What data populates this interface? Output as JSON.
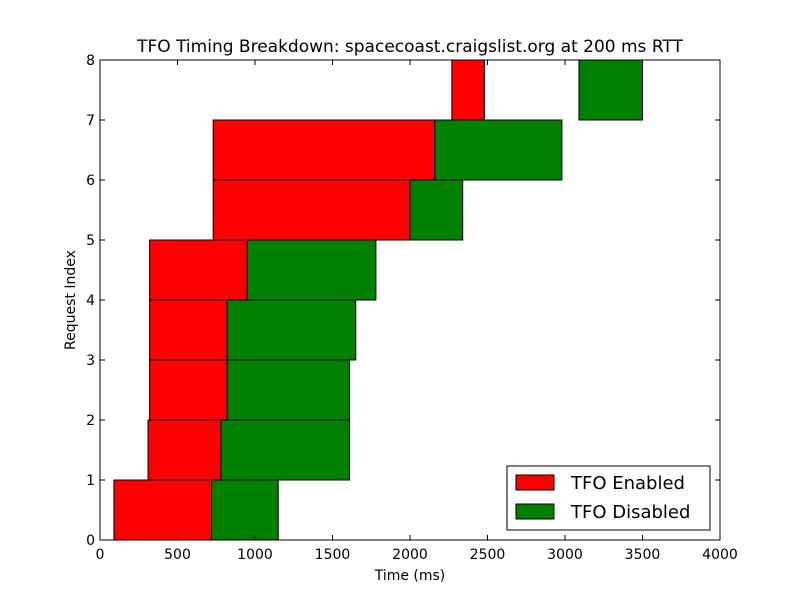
{
  "chart_data": {
    "type": "bar",
    "orientation": "horizontal-interval",
    "title": "TFO Timing Breakdown: spacecoast.craigslist.org at 200 ms RTT",
    "xlabel": "Time (ms)",
    "ylabel": "Request Index",
    "xlim": [
      0,
      4000
    ],
    "ylim": [
      0,
      8
    ],
    "xticks": [
      0,
      500,
      1000,
      1500,
      2000,
      2500,
      3000,
      3500,
      4000
    ],
    "yticks": [
      0,
      1,
      2,
      3,
      4,
      5,
      6,
      7,
      8
    ],
    "xtick_labels": [
      "0",
      "500",
      "1000",
      "1500",
      "2000",
      "2500",
      "3000",
      "3500",
      "4000"
    ],
    "ytick_labels": [
      "0",
      "1",
      "2",
      "3",
      "4",
      "5",
      "6",
      "7",
      "8"
    ],
    "grid": false,
    "legend_position": "bottom-right",
    "series": [
      {
        "name": "TFO Enabled",
        "color": "#ff0000",
        "intervals": [
          {
            "index": 0,
            "start": 90,
            "end": 720
          },
          {
            "index": 1,
            "start": 310,
            "end": 780
          },
          {
            "index": 2,
            "start": 320,
            "end": 820
          },
          {
            "index": 3,
            "start": 320,
            "end": 820
          },
          {
            "index": 4,
            "start": 320,
            "end": 950
          },
          {
            "index": 5,
            "start": 730,
            "end": 2000
          },
          {
            "index": 6,
            "start": 730,
            "end": 2160
          },
          {
            "index": 7,
            "start": 2270,
            "end": 2480
          }
        ]
      },
      {
        "name": "TFO Disabled",
        "color": "#008000",
        "intervals": [
          {
            "index": 0,
            "start": 720,
            "end": 1150
          },
          {
            "index": 1,
            "start": 780,
            "end": 1610
          },
          {
            "index": 2,
            "start": 820,
            "end": 1610
          },
          {
            "index": 3,
            "start": 820,
            "end": 1650
          },
          {
            "index": 4,
            "start": 950,
            "end": 1780
          },
          {
            "index": 5,
            "start": 2000,
            "end": 2340
          },
          {
            "index": 6,
            "start": 2160,
            "end": 2980
          },
          {
            "index": 7,
            "start": 3090,
            "end": 3500
          }
        ]
      }
    ]
  }
}
